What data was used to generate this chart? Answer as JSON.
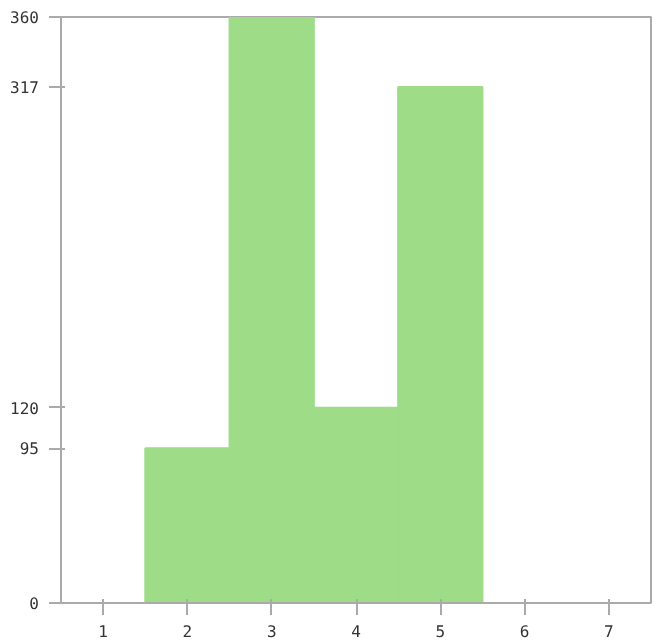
{
  "chart_data": {
    "type": "bar",
    "categories": [
      "1",
      "2",
      "3",
      "4",
      "5",
      "6",
      "7"
    ],
    "values": [
      0,
      95,
      360,
      120,
      317,
      0,
      0
    ],
    "color": "#9edc88",
    "ylim": [
      0,
      360
    ],
    "yticks": [
      0,
      95,
      120,
      317,
      360
    ],
    "grid": false
  }
}
